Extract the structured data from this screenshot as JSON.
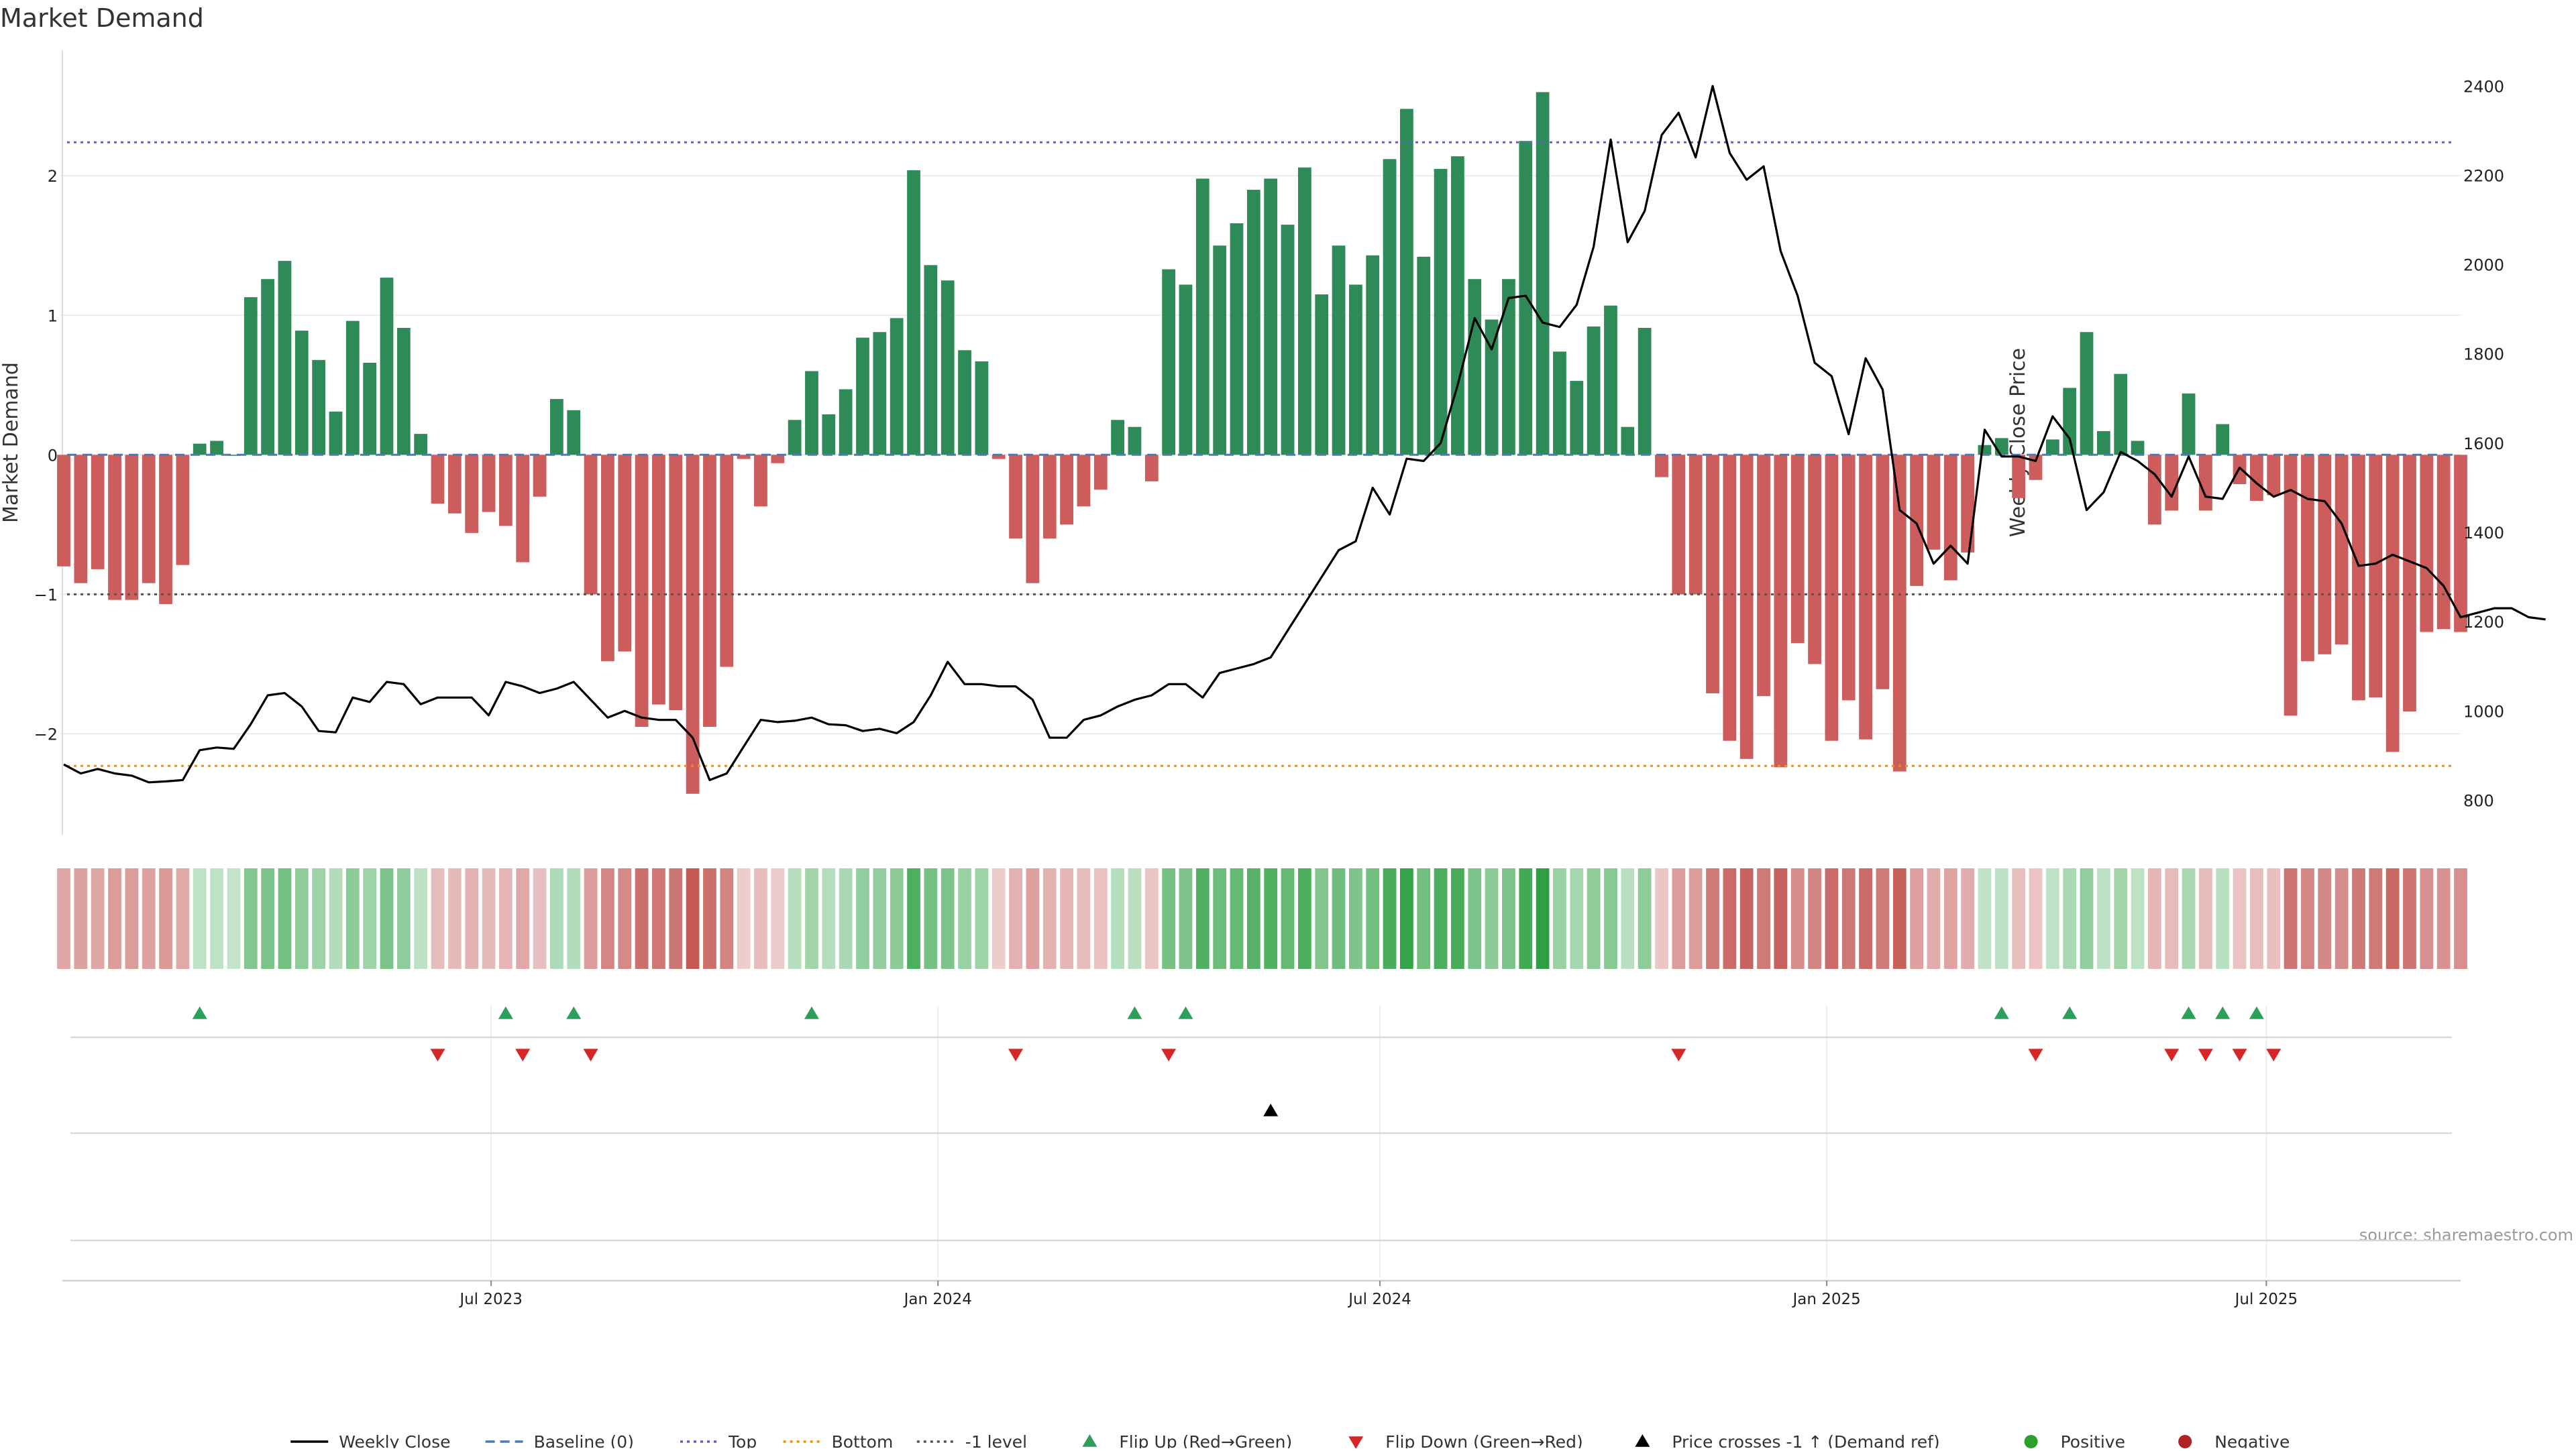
{
  "chart_data": {
    "type": "bar",
    "title": "Market Demand",
    "ylabel_left": "Market Demand",
    "ylabel_right": "Weekly Close Price",
    "source": "source: sharemaestro.com",
    "x_start": "2023-01-06",
    "x_step_weeks": 1,
    "x_ticks": [
      "Jul 2023",
      "Jan 2024",
      "Jul 2024",
      "Jan 2025",
      "Jul 2025"
    ],
    "ylim_left": [
      -2.7,
      2.9
    ],
    "yticks_left": [
      {
        "value": -2,
        "label": "−2"
      },
      {
        "value": -1,
        "label": "−1"
      },
      {
        "value": 0,
        "label": "0"
      },
      {
        "value": 1,
        "label": "1"
      },
      {
        "value": 2,
        "label": "2"
      }
    ],
    "ylim_right": [
      730,
      2480
    ],
    "yticks_right": [
      800,
      1000,
      1200,
      1400,
      1600,
      1800,
      2000,
      2200,
      2400
    ],
    "reference_lines": {
      "top": 2.24,
      "bottom": -2.23,
      "minus_one": -1,
      "baseline": 0
    },
    "colors": {
      "positive": "#2e8b57",
      "negative": "#cd5c5c",
      "price": "#000000",
      "top_line": "#6a5acd",
      "bottom_line": "#ff8c00",
      "minus_one_line": "#555555",
      "baseline_line": "#4a7ab8",
      "flip_up": "#2ca05a",
      "flip_down": "#d62728",
      "price_cross": "#000000",
      "positive_dot": "#2ca02c",
      "negative_dot": "#b22222"
    },
    "series": [
      {
        "name": "Market Demand",
        "values": [
          -0.8,
          -0.92,
          -0.82,
          -1.04,
          -1.04,
          -0.92,
          -1.07,
          -0.79,
          0.08,
          0.1,
          0,
          1.13,
          1.26,
          1.39,
          0.89,
          0.68,
          0.31,
          0.96,
          0.66,
          1.27,
          0.91,
          0.15,
          -0.35,
          -0.42,
          -0.56,
          -0.41,
          -0.51,
          -0.77,
          -0.3,
          0.4,
          0.32,
          -1.0,
          -1.48,
          -1.41,
          -1.95,
          -1.79,
          -1.83,
          -2.43,
          -1.95,
          -1.52,
          -0.03,
          -0.37,
          -0.06,
          0.25,
          0.6,
          0.29,
          0.47,
          0.84,
          0.88,
          0.98,
          2.04,
          1.36,
          1.25,
          0.75,
          0.67,
          -0.03,
          -0.6,
          -0.92,
          -0.6,
          -0.5,
          -0.37,
          -0.25,
          0.25,
          0.2,
          -0.19,
          1.33,
          1.22,
          1.98,
          1.5,
          1.66,
          1.9,
          1.98,
          1.65,
          2.06,
          1.15,
          1.5,
          1.22,
          1.43,
          2.12,
          2.48,
          1.42,
          2.05,
          2.14,
          1.26,
          0.97,
          1.26,
          2.25,
          2.6,
          0.74,
          0.53,
          0.92,
          1.07,
          0.2,
          0.91,
          -0.16,
          -1.0,
          -1.0,
          -1.71,
          -2.05,
          -2.18,
          -1.73,
          -2.24,
          -1.35,
          -1.5,
          -2.05,
          -1.76,
          -2.04,
          -1.68,
          -2.27,
          -0.94,
          -0.68,
          -0.9,
          -0.7,
          0.07,
          0.12,
          -0.31,
          -0.18,
          0.11,
          0.48,
          0.88,
          0.17,
          0.58,
          0.1,
          -0.5,
          -0.4,
          0.44,
          -0.4,
          0.22,
          -0.21,
          -0.33,
          -0.29,
          -1.87,
          -1.48,
          -1.43,
          -1.36,
          -1.76,
          -1.74,
          -2.13,
          -1.84,
          -1.27,
          -1.25,
          -1.27
        ]
      },
      {
        "name": "Weekly Close",
        "values": [
          880,
          860,
          870,
          860,
          855,
          840,
          842,
          845,
          912,
          918,
          915,
          970,
          1035,
          1040,
          1010,
          955,
          952,
          1030,
          1020,
          1065,
          1060,
          1015,
          1030,
          1030,
          1030,
          990,
          1065,
          1055,
          1040,
          1050,
          1065,
          1025,
          985,
          1000,
          985,
          980,
          980,
          940,
          845,
          860,
          920,
          980,
          975,
          978,
          985,
          970,
          968,
          955,
          960,
          950,
          975,
          1035,
          1110,
          1060,
          1060,
          1055,
          1055,
          1025,
          940,
          940,
          980,
          990,
          1010,
          1025,
          1035,
          1060,
          1060,
          1030,
          1085,
          1095,
          1105,
          1120,
          1180,
          1240,
          1300,
          1360,
          1380,
          1500,
          1440,
          1565,
          1560,
          1600,
          1730,
          1880,
          1810,
          1925,
          1930,
          1870,
          1860,
          1910,
          2040,
          2280,
          2050,
          2120,
          2290,
          2340,
          2240,
          2400,
          2250,
          2190,
          2220,
          2030,
          1930,
          1780,
          1750,
          1620,
          1790,
          1720,
          1450,
          1420,
          1330,
          1370,
          1330,
          1630,
          1570,
          1570,
          1560,
          1660,
          1610,
          1450,
          1490,
          1580,
          1560,
          1530,
          1480,
          1570,
          1480,
          1475,
          1545,
          1510,
          1480,
          1495,
          1475,
          1470,
          1420,
          1325,
          1330,
          1350,
          1335,
          1320,
          1280,
          1210,
          1220,
          1230,
          1230,
          1210,
          1205
        ]
      }
    ],
    "events": {
      "flip_up_indices": [
        8,
        26,
        30,
        44,
        63,
        66,
        114,
        118,
        125,
        127,
        129
      ],
      "flip_down_indices": [
        22,
        27,
        31,
        56,
        65,
        95,
        116,
        124,
        126,
        128,
        130
      ],
      "price_cross_indices": [
        71
      ]
    },
    "legend": {
      "placement": "bottom-center",
      "items": [
        {
          "label": "Weekly Close",
          "kind": "line-solid",
          "color": "#000000"
        },
        {
          "label": "Baseline (0)",
          "kind": "line-dashed",
          "color": "#4a7ab8"
        },
        {
          "label": "Top",
          "kind": "line-dotted",
          "color": "#6a5acd"
        },
        {
          "label": "Bottom",
          "kind": "line-dotted",
          "color": "#ff8c00"
        },
        {
          "label": "-1 level",
          "kind": "line-dotted",
          "color": "#555555"
        },
        {
          "label": "Flip Up (Red→Green)",
          "kind": "triangle-up",
          "color": "#2ca05a"
        },
        {
          "label": "Flip Down (Green→Red)",
          "kind": "triangle-down",
          "color": "#d62728"
        },
        {
          "label": "Price crosses -1 ↑ (Demand ref)",
          "kind": "triangle-up",
          "color": "#000000"
        },
        {
          "label": "Positive",
          "kind": "dot",
          "color": "#2ca02c"
        },
        {
          "label": "Negative",
          "kind": "dot",
          "color": "#b22222"
        }
      ]
    }
  }
}
